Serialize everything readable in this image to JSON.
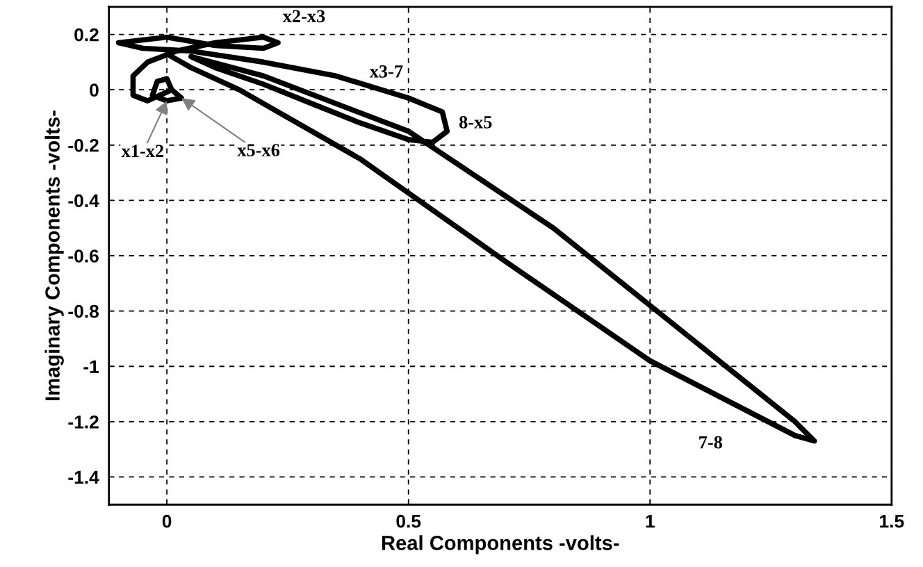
{
  "chart_data": {
    "type": "line",
    "xlabel": "Real Components -volts-",
    "ylabel": "Imaginary Components -volts-",
    "x": [
      0.01,
      0.03,
      0.0,
      -0.03,
      -0.02,
      0.0,
      0.01,
      -0.04,
      -0.07,
      -0.07,
      -0.04,
      0.02,
      0.1,
      0.2,
      0.23,
      0.2,
      0.1,
      0.0,
      -0.05,
      -0.1,
      -0.05,
      0.05,
      0.2,
      0.35,
      0.5,
      0.57,
      0.58,
      0.55,
      0.5,
      0.4,
      0.3,
      0.2,
      0.1,
      0.05,
      0.2,
      0.5,
      0.8,
      1.1,
      1.3,
      1.34,
      1.3,
      1.0,
      0.7,
      0.4,
      0.15,
      0.05,
      0.0
    ],
    "series": [
      {
        "color": "#000000",
        "values": [
          0.0,
          -0.03,
          -0.04,
          -0.02,
          0.03,
          0.04,
          0.0,
          -0.04,
          -0.02,
          0.05,
          0.1,
          0.14,
          0.17,
          0.19,
          0.17,
          0.15,
          0.16,
          0.19,
          0.18,
          0.17,
          0.15,
          0.14,
          0.1,
          0.05,
          -0.03,
          -0.08,
          -0.15,
          -0.19,
          -0.18,
          -0.12,
          -0.05,
          0.02,
          0.08,
          0.12,
          0.05,
          -0.15,
          -0.5,
          -0.92,
          -1.2,
          -1.27,
          -1.25,
          -0.98,
          -0.62,
          -0.25,
          0.0,
          0.08,
          0.13
        ]
      }
    ],
    "xlim": [
      -0.12,
      1.5
    ],
    "ylim": [
      -1.5,
      0.3
    ],
    "xticks": [
      0,
      0.5,
      1,
      1.5
    ],
    "yticks": [
      0.2,
      0,
      -0.2,
      -0.4,
      -0.6,
      -0.8,
      -1,
      -1.2,
      -1.4
    ],
    "grid": true,
    "marker": "none",
    "line_style": "solid",
    "annotations": [
      {
        "text": "x1-x2",
        "x": 0.0,
        "y": -0.04
      },
      {
        "text": "x5-x6",
        "x": 0.03,
        "y": -0.03
      },
      "x2-x3",
      "x3-7",
      "8-x5",
      "7-8"
    ]
  }
}
